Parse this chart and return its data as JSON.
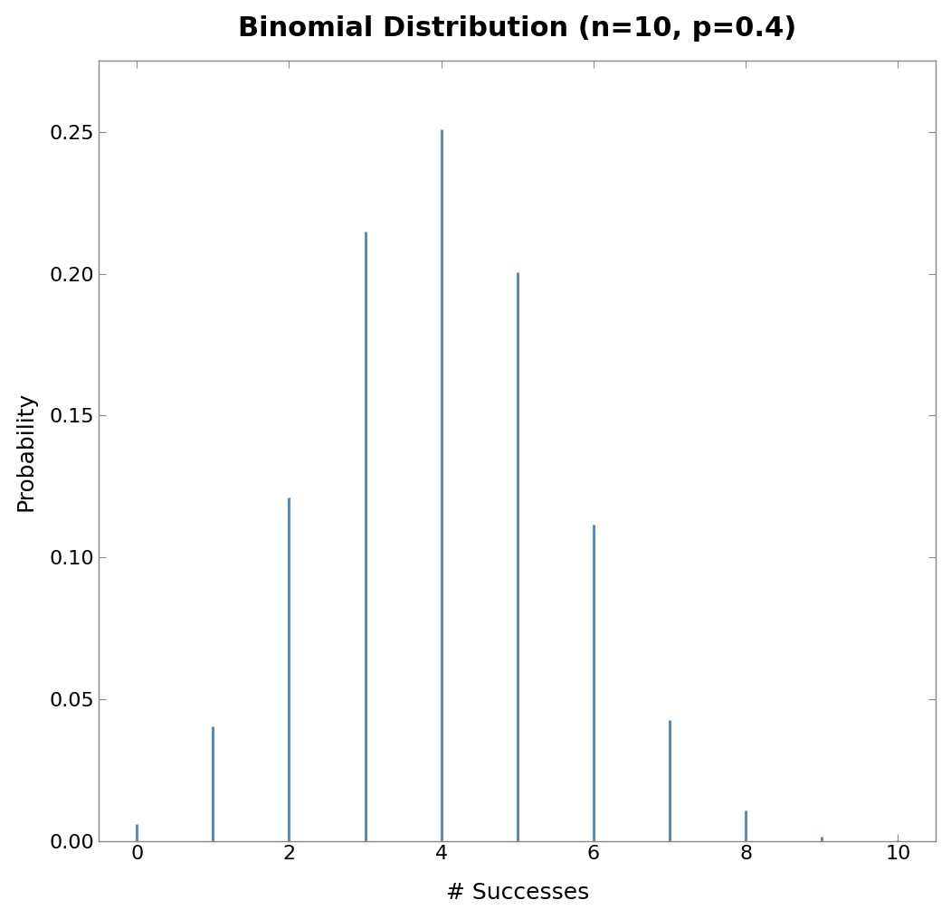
{
  "title": "Binomial Distribution (n=10, p=0.4)",
  "xlabel": "# Successes",
  "ylabel": "Probability",
  "x_values": [
    0,
    1,
    2,
    3,
    4,
    5,
    6,
    7,
    8,
    9,
    10
  ],
  "probabilities": [
    0.006046618,
    0.040310784,
    0.120932352,
    0.214990848,
    0.250822656,
    0.200658125,
    0.111476736,
    0.042467328,
    0.010616832,
    0.001572864,
    0.000104858
  ],
  "bar_color": "#5b8db8",
  "line_width": 2.2,
  "xlim": [
    -0.5,
    10.5
  ],
  "ylim": [
    0,
    0.275
  ],
  "yticks": [
    0.0,
    0.05,
    0.1,
    0.15,
    0.2,
    0.25
  ],
  "xticks": [
    0,
    2,
    4,
    6,
    8,
    10
  ],
  "title_fontsize": 22,
  "axis_label_fontsize": 18,
  "tick_fontsize": 16,
  "background_color": "#ffffff",
  "plot_bg_color": "#ffffff",
  "spine_color": "#888888"
}
